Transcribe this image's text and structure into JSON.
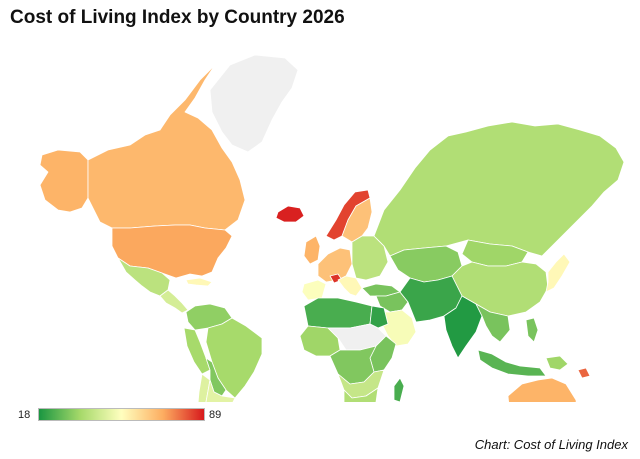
{
  "title": "Cost of Living Index by Country 2026",
  "source": "Chart: Cost of Living Index",
  "legend": {
    "min": "18",
    "max": "89",
    "colors": [
      "#1a9641",
      "#a6d96a",
      "#ffffbf",
      "#fdae61",
      "#d7191c"
    ]
  },
  "colors": {
    "no_data": "#f0f0f0",
    "border": "#ffffff"
  },
  "regions": [
    {
      "name": "Alaska",
      "value": 70
    },
    {
      "name": "Canada",
      "value": 69
    },
    {
      "name": "Greenland",
      "value": null
    },
    {
      "name": "United States",
      "value": 72
    },
    {
      "name": "Mexico",
      "value": 40
    },
    {
      "name": "Central America",
      "value": 45
    },
    {
      "name": "Caribbean",
      "value": 55
    },
    {
      "name": "Colombia and Venezuela",
      "value": 33
    },
    {
      "name": "Peru and Ecuador",
      "value": 36
    },
    {
      "name": "Brazil",
      "value": 36
    },
    {
      "name": "Bolivia and Paraguay",
      "value": 31
    },
    {
      "name": "Chile",
      "value": 47
    },
    {
      "name": "Argentina and Uruguay",
      "value": 48
    },
    {
      "name": "Iceland",
      "value": 88
    },
    {
      "name": "Norway",
      "value": 84
    },
    {
      "name": "Sweden and Finland",
      "value": 67
    },
    {
      "name": "United Kingdom and Ireland",
      "value": 70
    },
    {
      "name": "Western Europe",
      "value": 67
    },
    {
      "name": "Switzerland",
      "value": 86
    },
    {
      "name": "Iberia",
      "value": 53
    },
    {
      "name": "Italy and Balkans",
      "value": 55
    },
    {
      "name": "Eastern Europe",
      "value": 40
    },
    {
      "name": "Turkey",
      "value": 30
    },
    {
      "name": "Russia",
      "value": 38
    },
    {
      "name": "Kazakhstan and Central Asia",
      "value": 32
    },
    {
      "name": "Mongolia",
      "value": 35
    },
    {
      "name": "China",
      "value": 38
    },
    {
      "name": "Middle East",
      "value": 30
    },
    {
      "name": "Arabian Peninsula",
      "value": 52
    },
    {
      "name": "Iran, Afghanistan and Pakistan",
      "value": 22
    },
    {
      "name": "India",
      "value": 19
    },
    {
      "name": "Southeast Asia",
      "value": 30
    },
    {
      "name": "Japan and Korea",
      "value": 55
    },
    {
      "name": "Indonesia",
      "value": 26
    },
    {
      "name": "Philippines",
      "value": 30
    },
    {
      "name": "Papua New Guinea",
      "value": 35
    },
    {
      "name": "Pacific Islands",
      "value": 80
    },
    {
      "name": "Australia",
      "value": 70
    },
    {
      "name": "New Zealand",
      "value": 65
    },
    {
      "name": "North Africa",
      "value": 24
    },
    {
      "name": "Egypt",
      "value": 21
    },
    {
      "name": "West Africa",
      "value": 35
    },
    {
      "name": "Sahel and Sudan",
      "value": null
    },
    {
      "name": "East Africa",
      "value": 30
    },
    {
      "name": "Central Africa",
      "value": 31
    },
    {
      "name": "Southern Africa",
      "value": 42
    },
    {
      "name": "South Africa",
      "value": 38
    },
    {
      "name": "Madagascar",
      "value": 24
    }
  ]
}
